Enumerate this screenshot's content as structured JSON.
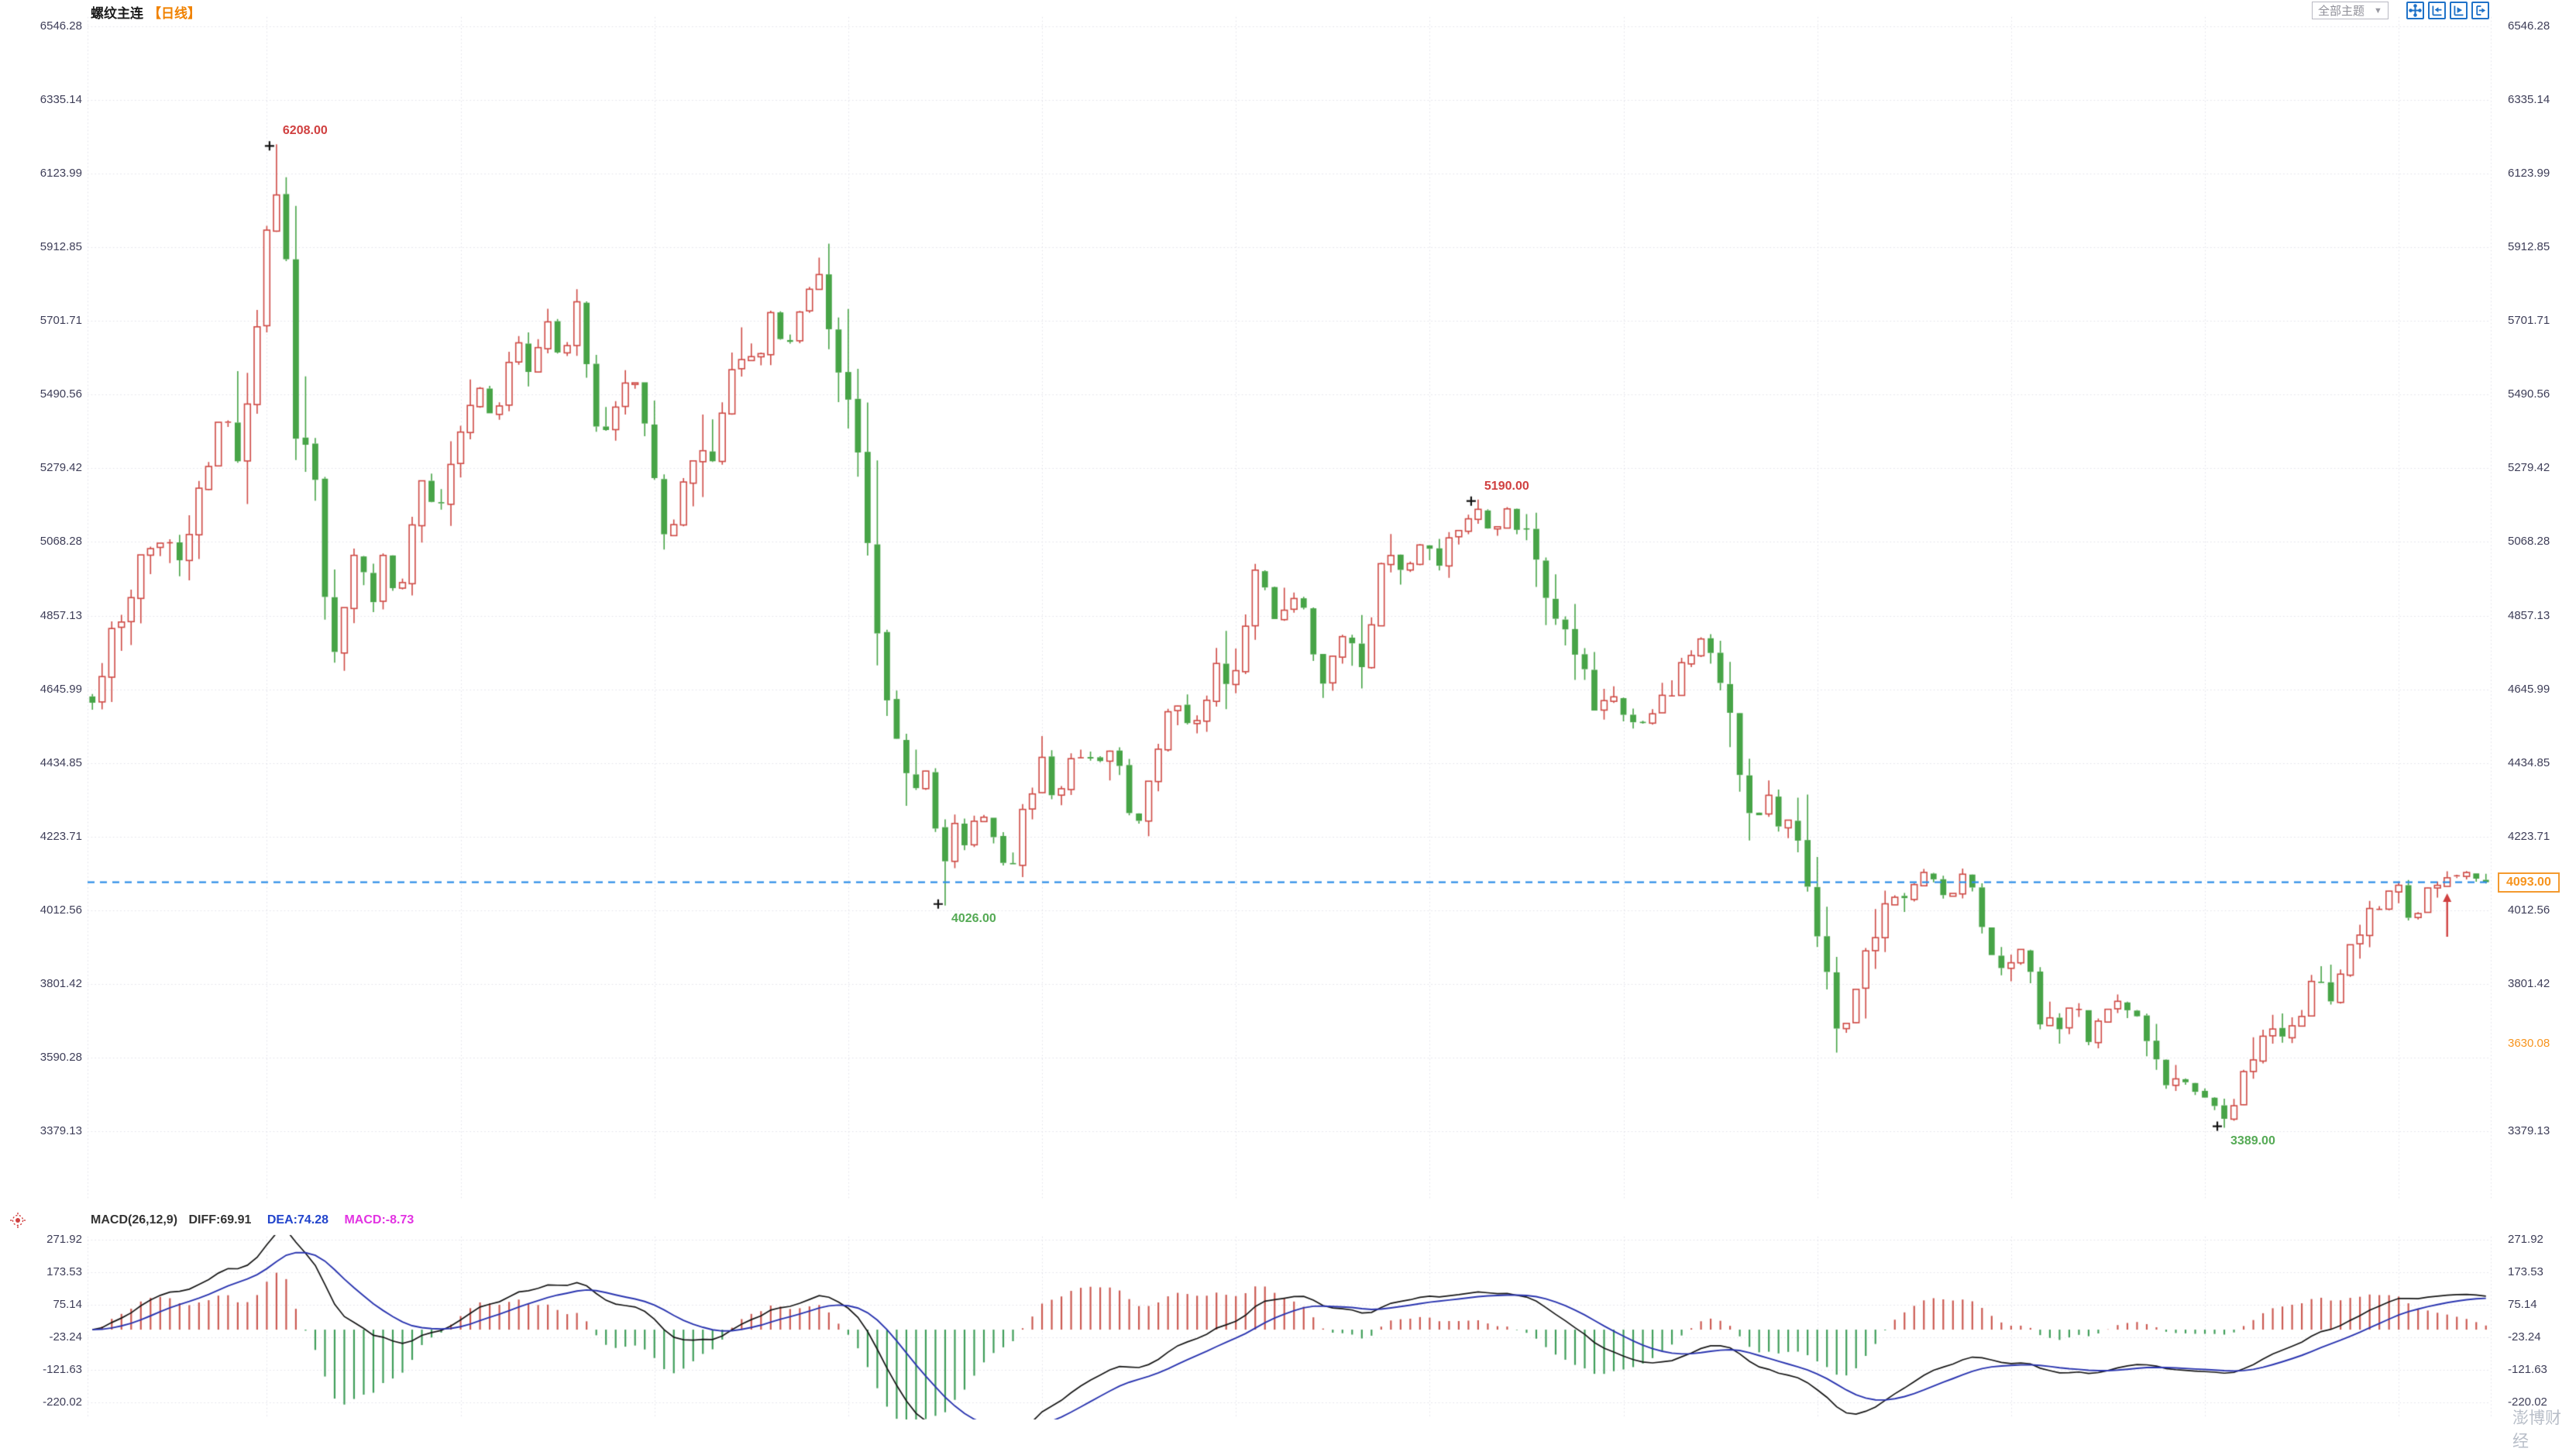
{
  "header": {
    "title": "螺纹主连",
    "period_tag": "【日线】"
  },
  "toolbar": {
    "theme_selector_label": "全部主题",
    "caret": "▼",
    "icons": [
      "pan-crosshair-icon",
      "compress-axis-left-icon",
      "expand-axis-right-icon",
      "go-to-latest-icon"
    ]
  },
  "macd_panel": {
    "params_label": "MACD(26,12,9)",
    "diff_label": "DIFF:69.91",
    "dea_label": "DEA:74.28",
    "macd_label": "MACD:-8.73"
  },
  "watermark": "澎博财经",
  "chart_data": {
    "type": "candlestick",
    "symbol": "螺纹主连",
    "period": "日线",
    "candle_count": 248,
    "legend_position": "none",
    "grid": true,
    "price_axis": {
      "ticks": [
        6546.28,
        6335.14,
        6123.99,
        5912.85,
        5701.71,
        5490.56,
        5279.42,
        5068.28,
        4857.13,
        4645.99,
        4434.85,
        4223.71,
        4012.56,
        3801.42,
        3590.28,
        3379.13
      ]
    },
    "macd_axis": {
      "ticks": [
        271.92,
        173.53,
        75.14,
        -23.24,
        -121.63,
        -220.02
      ]
    },
    "current_price": {
      "label": "4093.00",
      "value": 4093.0
    },
    "settlement": {
      "label": "3630.08",
      "value": 3630.08
    },
    "macd_values": {
      "diff": 69.91,
      "dea": 74.28,
      "macd": -8.73
    },
    "annotations": [
      {
        "label": "6208.00",
        "price": 6208.0,
        "t": 0.076,
        "kind": "high"
      },
      {
        "label": "5190.00",
        "price": 5190.0,
        "t": 0.578,
        "kind": "high"
      },
      {
        "label": "4026.00",
        "price": 4026.0,
        "t": 0.355,
        "kind": "low"
      },
      {
        "label": "3389.00",
        "price": 3389.0,
        "t": 0.892,
        "kind": "low"
      }
    ],
    "signal_arrow": {
      "t": 0.982,
      "direction": "up"
    },
    "colors": {
      "up": "#cf4a45",
      "down": "#47a447",
      "diff_line": "#151515",
      "dea_line": "#2a35b0",
      "hist_pos": "#cc5a52",
      "hist_neg": "#3f9e5a",
      "current_line": "#2f8fe8",
      "tag": "#f49a2e",
      "annotation_high": "#d04040",
      "annotation_low": "#55aa55",
      "grid": "#e2e2ea",
      "axis_text": "#3e3e58"
    },
    "price_path": [
      [
        0,
        4640
      ],
      [
        0.017,
        4950
      ],
      [
        0.028,
        5100
      ],
      [
        0.038,
        5050
      ],
      [
        0.045,
        5250
      ],
      [
        0.055,
        5450
      ],
      [
        0.06,
        5300
      ],
      [
        0.067,
        5600
      ],
      [
        0.076,
        6150
      ],
      [
        0.081,
        5850
      ],
      [
        0.086,
        5250
      ],
      [
        0.092,
        5400
      ],
      [
        0.099,
        4680
      ],
      [
        0.106,
        4900
      ],
      [
        0.111,
        5120
      ],
      [
        0.116,
        4870
      ],
      [
        0.122,
        5050
      ],
      [
        0.128,
        4920
      ],
      [
        0.138,
        5250
      ],
      [
        0.144,
        5120
      ],
      [
        0.154,
        5380
      ],
      [
        0.163,
        5500
      ],
      [
        0.168,
        5400
      ],
      [
        0.176,
        5620
      ],
      [
        0.182,
        5560
      ],
      [
        0.19,
        5680
      ],
      [
        0.196,
        5600
      ],
      [
        0.202,
        5790
      ],
      [
        0.211,
        5360
      ],
      [
        0.218,
        5480
      ],
      [
        0.224,
        5560
      ],
      [
        0.229,
        5460
      ],
      [
        0.235,
        5200
      ],
      [
        0.241,
        5070
      ],
      [
        0.248,
        5280
      ],
      [
        0.254,
        5380
      ],
      [
        0.259,
        5260
      ],
      [
        0.27,
        5650
      ],
      [
        0.277,
        5540
      ],
      [
        0.284,
        5720
      ],
      [
        0.289,
        5610
      ],
      [
        0.296,
        5750
      ],
      [
        0.303,
        5860
      ],
      [
        0.31,
        5560
      ],
      [
        0.317,
        5480
      ],
      [
        0.323,
        5100
      ],
      [
        0.331,
        4680
      ],
      [
        0.338,
        4450
      ],
      [
        0.343,
        4300
      ],
      [
        0.347,
        4420
      ],
      [
        0.355,
        4120
      ],
      [
        0.36,
        4280
      ],
      [
        0.365,
        4180
      ],
      [
        0.37,
        4320
      ],
      [
        0.377,
        4200
      ],
      [
        0.383,
        4090
      ],
      [
        0.39,
        4320
      ],
      [
        0.397,
        4420
      ],
      [
        0.403,
        4350
      ],
      [
        0.412,
        4480
      ],
      [
        0.419,
        4420
      ],
      [
        0.426,
        4500
      ],
      [
        0.433,
        4300
      ],
      [
        0.438,
        4280
      ],
      [
        0.446,
        4530
      ],
      [
        0.455,
        4600
      ],
      [
        0.462,
        4550
      ],
      [
        0.469,
        4700
      ],
      [
        0.477,
        4640
      ],
      [
        0.486,
        5000
      ],
      [
        0.495,
        4820
      ],
      [
        0.504,
        4940
      ],
      [
        0.513,
        4640
      ],
      [
        0.524,
        4800
      ],
      [
        0.531,
        4730
      ],
      [
        0.54,
        5080
      ],
      [
        0.547,
        4950
      ],
      [
        0.556,
        5070
      ],
      [
        0.563,
        5000
      ],
      [
        0.571,
        5120
      ],
      [
        0.578,
        5160
      ],
      [
        0.585,
        5080
      ],
      [
        0.592,
        5150
      ],
      [
        0.6,
        5070
      ],
      [
        0.609,
        4920
      ],
      [
        0.618,
        4800
      ],
      [
        0.626,
        4620
      ],
      [
        0.635,
        4650
      ],
      [
        0.642,
        4540
      ],
      [
        0.65,
        4560
      ],
      [
        0.659,
        4650
      ],
      [
        0.668,
        4760
      ],
      [
        0.675,
        4800
      ],
      [
        0.682,
        4650
      ],
      [
        0.689,
        4380
      ],
      [
        0.695,
        4230
      ],
      [
        0.702,
        4320
      ],
      [
        0.709,
        4230
      ],
      [
        0.716,
        4130
      ],
      [
        0.723,
        3900
      ],
      [
        0.73,
        3640
      ],
      [
        0.737,
        3800
      ],
      [
        0.745,
        3920
      ],
      [
        0.752,
        4080
      ],
      [
        0.759,
        4050
      ],
      [
        0.766,
        4130
      ],
      [
        0.773,
        4050
      ],
      [
        0.78,
        4100
      ],
      [
        0.787,
        4030
      ],
      [
        0.794,
        3910
      ],
      [
        0.801,
        3840
      ],
      [
        0.807,
        3940
      ],
      [
        0.814,
        3650
      ],
      [
        0.821,
        3680
      ],
      [
        0.828,
        3750
      ],
      [
        0.834,
        3650
      ],
      [
        0.841,
        3720
      ],
      [
        0.848,
        3770
      ],
      [
        0.854,
        3700
      ],
      [
        0.861,
        3560
      ],
      [
        0.868,
        3490
      ],
      [
        0.875,
        3540
      ],
      [
        0.883,
        3470
      ],
      [
        0.892,
        3420
      ],
      [
        0.899,
        3560
      ],
      [
        0.906,
        3610
      ],
      [
        0.913,
        3700
      ],
      [
        0.92,
        3650
      ],
      [
        0.927,
        3800
      ],
      [
        0.934,
        3750
      ],
      [
        0.941,
        3870
      ],
      [
        0.948,
        3940
      ],
      [
        0.955,
        4010
      ],
      [
        0.963,
        4080
      ],
      [
        0.969,
        3980
      ],
      [
        0.975,
        4060
      ],
      [
        0.982,
        4080
      ],
      [
        0.989,
        4130
      ],
      [
        1,
        4093
      ]
    ]
  }
}
